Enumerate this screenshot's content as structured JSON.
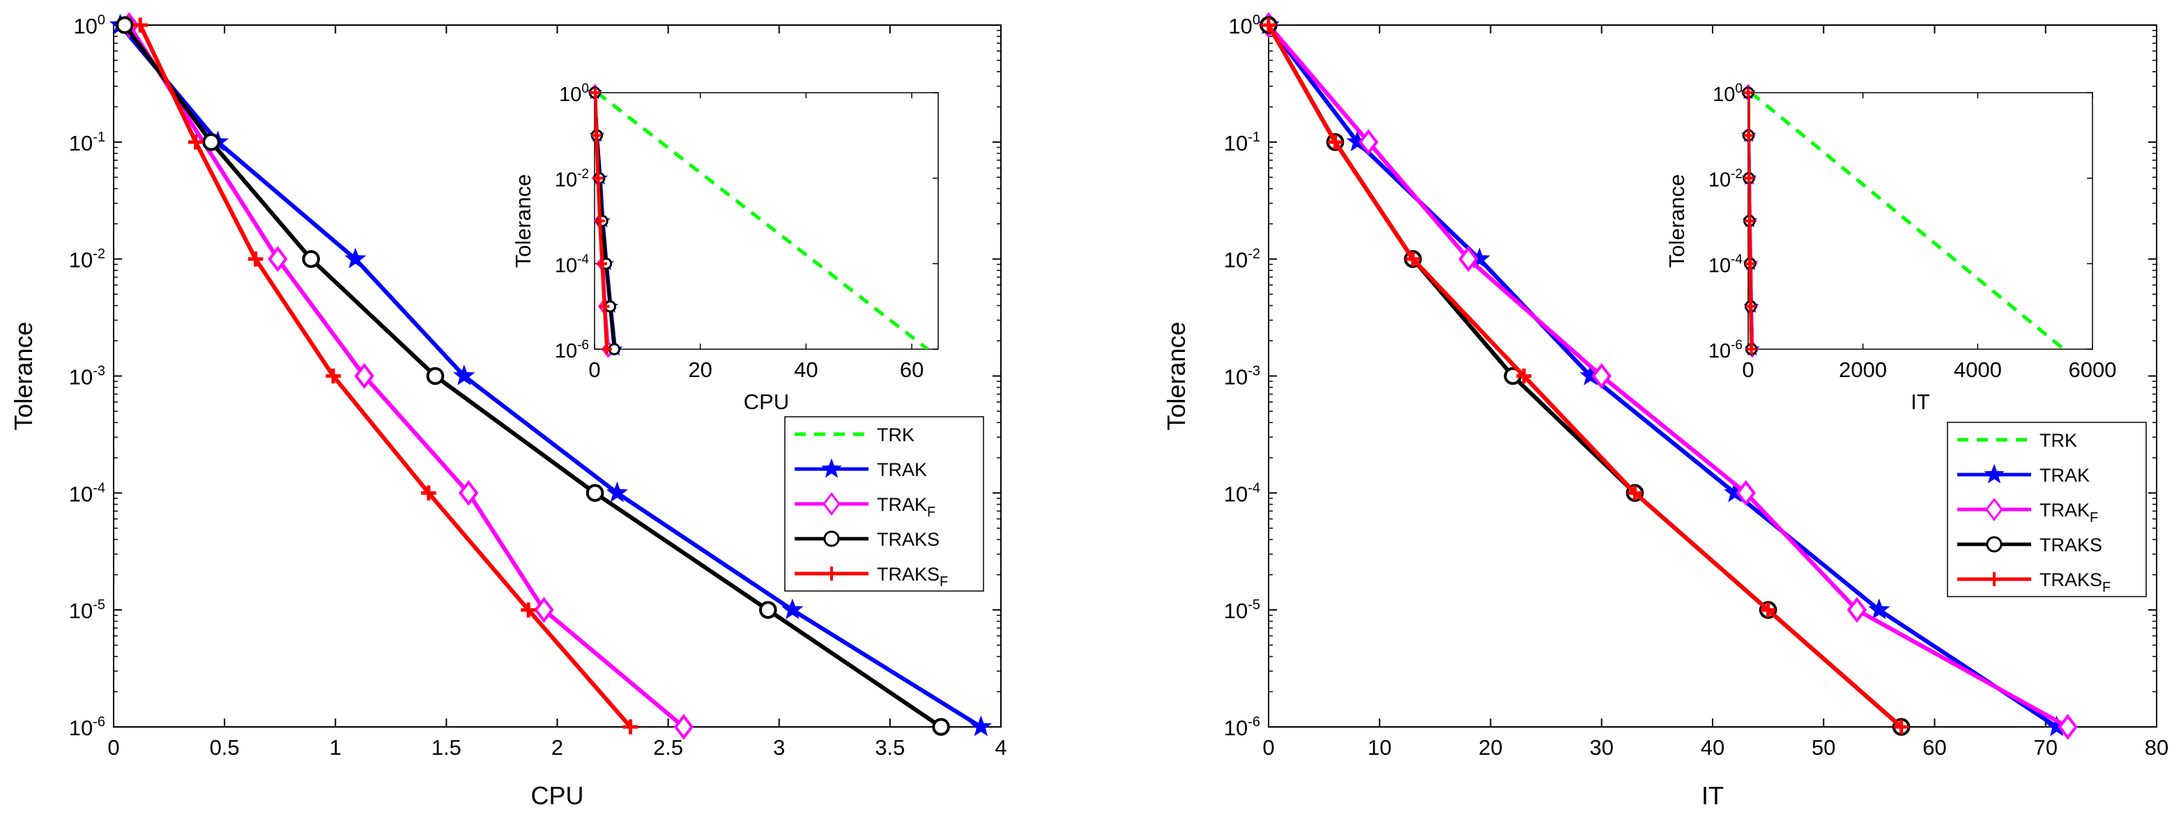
{
  "chart_data": [
    {
      "type": "line",
      "yscale": "log",
      "xlabel": "CPU",
      "ylabel": "Tolerance",
      "xlim": [
        0,
        4
      ],
      "ylim": [
        1e-06,
        1
      ],
      "xticks": [
        0,
        0.5,
        1,
        1.5,
        2,
        2.5,
        3,
        3.5,
        4
      ],
      "xtick_labels": [
        "0",
        "0.5",
        "1",
        "1.5",
        "2",
        "2.5",
        "3",
        "3.5",
        "4"
      ],
      "yticks": [
        1e-06,
        1e-05,
        0.0001,
        0.001,
        0.01,
        0.1,
        1
      ],
      "ytick_labels": [
        {
          "base": "10",
          "exp": "-6"
        },
        {
          "base": "10",
          "exp": "-5"
        },
        {
          "base": "10",
          "exp": "-4"
        },
        {
          "base": "10",
          "exp": "-3"
        },
        {
          "base": "10",
          "exp": "-2"
        },
        {
          "base": "10",
          "exp": "-1"
        },
        {
          "base": "10",
          "exp": "0"
        }
      ],
      "legend": {
        "position": "right",
        "entries": [
          {
            "series": "TRK",
            "label": "TRK",
            "sub": ""
          },
          {
            "series": "TRAK",
            "label": "TRAK",
            "sub": ""
          },
          {
            "series": "TRAK_F",
            "label": "TRAK",
            "sub": "F"
          },
          {
            "series": "TRAKS",
            "label": "TRAKS",
            "sub": ""
          },
          {
            "series": "TRAKS_F",
            "label": "TRAKS",
            "sub": "F"
          }
        ]
      },
      "series": [
        {
          "name": "TRAK",
          "color": "#0000ff",
          "marker": "star",
          "dash": "solid",
          "x": [
            0.03,
            0.47,
            1.09,
            1.58,
            2.27,
            3.06,
            3.91
          ],
          "y": [
            1,
            0.1,
            0.01,
            0.001,
            0.0001,
            1e-05,
            1e-06
          ]
        },
        {
          "name": "TRAK_F",
          "color": "#ff00ff",
          "marker": "diamond",
          "dash": "solid",
          "x": [
            0.07,
            0.74,
            1.13,
            1.6,
            1.94,
            2.57
          ],
          "y": [
            1,
            0.01,
            0.001,
            0.0001,
            1e-05,
            1e-06
          ]
        },
        {
          "name": "TRAKS",
          "color": "#000000",
          "marker": "circle",
          "dash": "solid",
          "x": [
            0.05,
            0.44,
            0.89,
            1.45,
            2.17,
            2.95,
            3.73
          ],
          "y": [
            1,
            0.1,
            0.01,
            0.001,
            0.0001,
            1e-05,
            1e-06
          ]
        },
        {
          "name": "TRAKS_F",
          "color": "#ff0000",
          "marker": "plus",
          "dash": "solid",
          "x": [
            0.12,
            0.37,
            0.64,
            0.99,
            1.42,
            1.87,
            2.33
          ],
          "y": [
            1,
            0.1,
            0.01,
            0.001,
            0.0001,
            1e-05,
            1e-06
          ]
        }
      ],
      "inset": {
        "xlabel": "CPU",
        "ylabel": "Tolerance",
        "xlim": [
          0,
          65
        ],
        "ylim": [
          1e-06,
          1
        ],
        "xticks": [
          0,
          20,
          40,
          60
        ],
        "xtick_labels": [
          "0",
          "20",
          "40",
          "60"
        ],
        "yticks": [
          1e-06,
          0.0001,
          0.01,
          1
        ],
        "ytick_labels": [
          {
            "base": "10",
            "exp": "-6"
          },
          {
            "base": "10",
            "exp": "-4"
          },
          {
            "base": "10",
            "exp": "-2"
          },
          {
            "base": "10",
            "exp": "0"
          }
        ],
        "series": [
          {
            "name": "TRK",
            "color": "#00ff00",
            "marker": "none",
            "dash": "dashed",
            "x": [
              0.5,
              63
            ],
            "y": [
              1,
              1e-06
            ]
          },
          {
            "name": "TRAK",
            "color": "#0000ff",
            "marker": "star",
            "dash": "solid",
            "x": [
              0.03,
              0.47,
              1.09,
              1.58,
              2.27,
              3.06,
              3.91
            ],
            "y": [
              1,
              0.1,
              0.01,
              0.001,
              0.0001,
              1e-05,
              1e-06
            ]
          },
          {
            "name": "TRAK_F",
            "color": "#ff00ff",
            "marker": "diamond",
            "dash": "solid",
            "x": [
              0.07,
              0.74,
              1.13,
              1.6,
              1.94,
              2.57
            ],
            "y": [
              1,
              0.01,
              0.001,
              0.0001,
              1e-05,
              1e-06
            ]
          },
          {
            "name": "TRAKS",
            "color": "#000000",
            "marker": "circle",
            "dash": "solid",
            "x": [
              0.05,
              0.44,
              0.89,
              1.45,
              2.17,
              2.95,
              3.73
            ],
            "y": [
              1,
              0.1,
              0.01,
              0.001,
              0.0001,
              1e-05,
              1e-06
            ]
          },
          {
            "name": "TRAKS_F",
            "color": "#ff0000",
            "marker": "plus",
            "dash": "solid",
            "x": [
              0.12,
              0.37,
              0.64,
              0.99,
              1.42,
              1.87,
              2.33
            ],
            "y": [
              1,
              0.1,
              0.01,
              0.001,
              0.0001,
              1e-05,
              1e-06
            ]
          }
        ]
      }
    },
    {
      "type": "line",
      "yscale": "log",
      "xlabel": "IT",
      "ylabel": "Tolerance",
      "xlim": [
        0,
        80
      ],
      "ylim": [
        1e-06,
        1
      ],
      "xticks": [
        0,
        10,
        20,
        30,
        40,
        50,
        60,
        70,
        80
      ],
      "xtick_labels": [
        "0",
        "10",
        "20",
        "30",
        "40",
        "50",
        "60",
        "70",
        "80"
      ],
      "yticks": [
        1e-06,
        1e-05,
        0.0001,
        0.001,
        0.01,
        0.1,
        1
      ],
      "ytick_labels": [
        {
          "base": "10",
          "exp": "-6"
        },
        {
          "base": "10",
          "exp": "-5"
        },
        {
          "base": "10",
          "exp": "-4"
        },
        {
          "base": "10",
          "exp": "-3"
        },
        {
          "base": "10",
          "exp": "-2"
        },
        {
          "base": "10",
          "exp": "-1"
        },
        {
          "base": "10",
          "exp": "0"
        }
      ],
      "legend": {
        "position": "right",
        "entries": [
          {
            "series": "TRK",
            "label": "TRK",
            "sub": ""
          },
          {
            "series": "TRAK",
            "label": "TRAK",
            "sub": ""
          },
          {
            "series": "TRAK_F",
            "label": "TRAK",
            "sub": "F"
          },
          {
            "series": "TRAKS",
            "label": "TRAKS",
            "sub": ""
          },
          {
            "series": "TRAKS_F",
            "label": "TRAKS",
            "sub": "F"
          }
        ]
      },
      "series": [
        {
          "name": "TRAK",
          "color": "#0000ff",
          "marker": "star",
          "dash": "solid",
          "x": [
            0,
            8,
            19,
            29,
            42,
            55,
            71
          ],
          "y": [
            1,
            0.1,
            0.01,
            0.001,
            0.0001,
            1e-05,
            1e-06
          ]
        },
        {
          "name": "TRAK_F",
          "color": "#ff00ff",
          "marker": "diamond",
          "dash": "solid",
          "x": [
            0,
            9,
            18,
            30,
            43,
            53,
            72
          ],
          "y": [
            1,
            0.1,
            0.01,
            0.001,
            0.0001,
            1e-05,
            1e-06
          ]
        },
        {
          "name": "TRAKS",
          "color": "#000000",
          "marker": "circle",
          "dash": "solid",
          "x": [
            0,
            6,
            13,
            22,
            33,
            45,
            57
          ],
          "y": [
            1,
            0.1,
            0.01,
            0.001,
            0.0001,
            1e-05,
            1e-06
          ]
        },
        {
          "name": "TRAKS_F",
          "color": "#ff0000",
          "marker": "plus",
          "dash": "solid",
          "x": [
            0,
            6,
            13,
            23,
            33,
            45,
            57
          ],
          "y": [
            1,
            0.1,
            0.01,
            0.001,
            0.0001,
            1e-05,
            1e-06
          ]
        }
      ],
      "inset": {
        "xlabel": "IT",
        "ylabel": "Tolerance",
        "xlim": [
          0,
          6000
        ],
        "ylim": [
          1e-06,
          1
        ],
        "xticks": [
          0,
          2000,
          4000,
          6000
        ],
        "xtick_labels": [
          "0",
          "2000",
          "4000",
          "6000"
        ],
        "yticks": [
          1e-06,
          0.0001,
          0.01,
          1
        ],
        "ytick_labels": [
          {
            "base": "10",
            "exp": "-6"
          },
          {
            "base": "10",
            "exp": "-4"
          },
          {
            "base": "10",
            "exp": "-2"
          },
          {
            "base": "10",
            "exp": "0"
          }
        ],
        "series": [
          {
            "name": "TRK",
            "color": "#00ff00",
            "marker": "none",
            "dash": "dashed",
            "x": [
              50,
              5500
            ],
            "y": [
              1,
              1e-06
            ]
          },
          {
            "name": "TRAK",
            "color": "#0000ff",
            "marker": "star",
            "dash": "solid",
            "x": [
              0,
              8,
              19,
              29,
              42,
              55,
              71
            ],
            "y": [
              1,
              0.1,
              0.01,
              0.001,
              0.0001,
              1e-05,
              1e-06
            ]
          },
          {
            "name": "TRAK_F",
            "color": "#ff00ff",
            "marker": "diamond",
            "dash": "solid",
            "x": [
              0,
              9,
              18,
              30,
              43,
              53,
              72
            ],
            "y": [
              1,
              0.1,
              0.01,
              0.001,
              0.0001,
              1e-05,
              1e-06
            ]
          },
          {
            "name": "TRAKS",
            "color": "#000000",
            "marker": "circle",
            "dash": "solid",
            "x": [
              0,
              6,
              13,
              22,
              33,
              45,
              57
            ],
            "y": [
              1,
              0.1,
              0.01,
              0.001,
              0.0001,
              1e-05,
              1e-06
            ]
          },
          {
            "name": "TRAKS_F",
            "color": "#ff0000",
            "marker": "plus",
            "dash": "solid",
            "x": [
              0,
              6,
              13,
              23,
              33,
              45,
              57
            ],
            "y": [
              1,
              0.1,
              0.01,
              0.001,
              0.0001,
              1e-05,
              1e-06
            ]
          }
        ]
      }
    }
  ],
  "series_styles": {
    "TRK": {
      "color": "#00ff00",
      "marker": "none",
      "dash": "dashed"
    },
    "TRAK": {
      "color": "#0000ff",
      "marker": "star",
      "dash": "solid"
    },
    "TRAK_F": {
      "color": "#ff00ff",
      "marker": "diamond",
      "dash": "solid"
    },
    "TRAKS": {
      "color": "#000000",
      "marker": "circle",
      "dash": "solid"
    },
    "TRAKS_F": {
      "color": "#ff0000",
      "marker": "plus",
      "dash": "solid"
    }
  }
}
